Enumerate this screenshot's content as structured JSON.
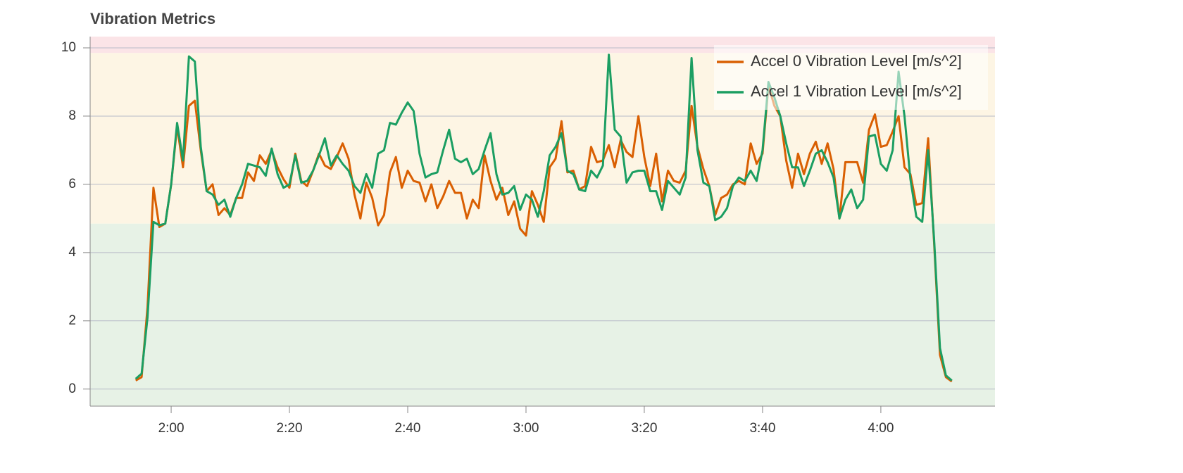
{
  "chart_data": {
    "type": "line",
    "title": "Vibration Metrics",
    "x": [
      114,
      115,
      116,
      117,
      118,
      119,
      120,
      121,
      122,
      123,
      124,
      125,
      126,
      127,
      128,
      129,
      130,
      131,
      132,
      133,
      134,
      135,
      136,
      137,
      138,
      139,
      140,
      141,
      142,
      143,
      144,
      145,
      146,
      147,
      148,
      149,
      150,
      151,
      152,
      153,
      154,
      155,
      156,
      157,
      158,
      159,
      160,
      161,
      162,
      163,
      164,
      165,
      166,
      167,
      168,
      169,
      170,
      171,
      172,
      173,
      174,
      175,
      176,
      177,
      178,
      179,
      180,
      181,
      182,
      183,
      184,
      185,
      186,
      187,
      188,
      189,
      190,
      191,
      192,
      193,
      194,
      195,
      196,
      197,
      198,
      199,
      200,
      201,
      202,
      203,
      204,
      205,
      206,
      207,
      208,
      209,
      210,
      211,
      212,
      213,
      214,
      215,
      216,
      217,
      218,
      219,
      220,
      221,
      222,
      223,
      224,
      225,
      226,
      227,
      228,
      229,
      230,
      231,
      232,
      233,
      234,
      235,
      236,
      237,
      238,
      239,
      240,
      241,
      242,
      243,
      244,
      245,
      246,
      247,
      248,
      249,
      250,
      251,
      252
    ],
    "series": [
      {
        "name": "Accel 0 Vibration Level [m/s^2]",
        "color": "#d95f02",
        "values": [
          0.25,
          0.35,
          2.4,
          5.9,
          4.75,
          4.85,
          6.0,
          7.7,
          6.5,
          8.3,
          8.45,
          7.0,
          5.8,
          6.0,
          5.1,
          5.3,
          5.1,
          5.6,
          5.6,
          6.35,
          6.1,
          6.85,
          6.6,
          7.0,
          6.5,
          6.15,
          5.9,
          6.9,
          6.1,
          5.95,
          6.4,
          6.9,
          6.55,
          6.45,
          6.8,
          7.2,
          6.75,
          5.7,
          5.0,
          6.05,
          5.6,
          4.8,
          5.1,
          6.35,
          6.8,
          5.9,
          6.4,
          6.1,
          6.05,
          5.5,
          6.0,
          5.3,
          5.65,
          6.1,
          5.75,
          5.75,
          5.0,
          5.55,
          5.3,
          6.85,
          6.1,
          5.55,
          5.9,
          5.1,
          5.5,
          4.7,
          4.5,
          5.8,
          5.4,
          4.9,
          6.5,
          6.75,
          7.85,
          6.35,
          6.4,
          5.85,
          5.95,
          7.1,
          6.65,
          6.7,
          7.15,
          6.5,
          7.3,
          6.95,
          6.8,
          8.0,
          6.8,
          5.95,
          6.9,
          5.5,
          6.4,
          6.1,
          6.05,
          6.4,
          8.3,
          7.1,
          6.45,
          5.95,
          5.1,
          5.6,
          5.7,
          6.0,
          6.1,
          6.0,
          7.2,
          6.6,
          6.9,
          8.9,
          8.3,
          8.0,
          6.7,
          5.9,
          6.9,
          6.3,
          6.9,
          7.25,
          6.6,
          7.2,
          6.45,
          5.0,
          6.65,
          6.65,
          6.65,
          6.05,
          7.6,
          8.05,
          7.1,
          7.15,
          7.55,
          8.0,
          6.5,
          6.3,
          5.4,
          5.45,
          7.35,
          4.3,
          1.0,
          0.35,
          0.22
        ]
      },
      {
        "name": "Accel 1 Vibration Level [m/s^2]",
        "color": "#1b9e62",
        "values": [
          0.3,
          0.45,
          2.1,
          4.9,
          4.8,
          4.85,
          6.0,
          7.8,
          6.7,
          9.75,
          9.6,
          7.1,
          5.8,
          5.7,
          5.4,
          5.55,
          5.05,
          5.6,
          6.0,
          6.6,
          6.55,
          6.5,
          6.25,
          7.05,
          6.3,
          5.9,
          6.0,
          6.85,
          6.05,
          6.1,
          6.4,
          6.85,
          7.35,
          6.55,
          6.85,
          6.6,
          6.4,
          5.95,
          5.75,
          6.3,
          5.9,
          6.9,
          7.0,
          7.8,
          7.75,
          8.1,
          8.4,
          8.15,
          6.9,
          6.2,
          6.3,
          6.35,
          7.0,
          7.6,
          6.75,
          6.65,
          6.75,
          6.3,
          6.45,
          7.0,
          7.5,
          6.3,
          5.7,
          5.75,
          5.95,
          5.25,
          5.7,
          5.55,
          5.05,
          5.8,
          6.85,
          7.1,
          7.5,
          6.4,
          6.3,
          5.85,
          5.8,
          6.4,
          6.2,
          6.55,
          9.8,
          7.6,
          7.4,
          6.05,
          6.35,
          6.4,
          6.4,
          5.8,
          5.8,
          5.25,
          6.1,
          5.9,
          5.7,
          6.2,
          9.7,
          7.0,
          6.05,
          5.95,
          4.95,
          5.05,
          5.3,
          5.95,
          6.2,
          6.1,
          6.4,
          6.1,
          7.0,
          9.0,
          8.55,
          8.0,
          7.2,
          6.5,
          6.5,
          5.95,
          6.4,
          6.9,
          7.0,
          6.65,
          6.2,
          5.0,
          5.55,
          5.85,
          5.3,
          5.55,
          7.4,
          7.45,
          6.6,
          6.4,
          7.0,
          9.3,
          8.0,
          6.15,
          5.05,
          4.9,
          7.0,
          4.4,
          1.2,
          0.4,
          0.25
        ]
      }
    ],
    "xlim": [
      106.3,
      259.3
    ],
    "xticks": [
      {
        "value": 120,
        "label": "2:00"
      },
      {
        "value": 140,
        "label": "2:20"
      },
      {
        "value": 160,
        "label": "2:40"
      },
      {
        "value": 180,
        "label": "3:00"
      },
      {
        "value": 200,
        "label": "3:20"
      },
      {
        "value": 220,
        "label": "3:40"
      },
      {
        "value": 240,
        "label": "4:00"
      }
    ],
    "ylim": [
      -0.5,
      10.33
    ],
    "yticks": [
      0,
      2,
      4,
      6,
      8,
      10
    ],
    "grid": true,
    "legend": "top-right",
    "bands": [
      {
        "from": -0.5,
        "to": 4.85,
        "color": "#e7f2e6"
      },
      {
        "from": 4.85,
        "to": 9.85,
        "color": "#fdf5e4"
      },
      {
        "from": 9.85,
        "to": 10.33,
        "color": "#fbe4e7"
      }
    ]
  }
}
